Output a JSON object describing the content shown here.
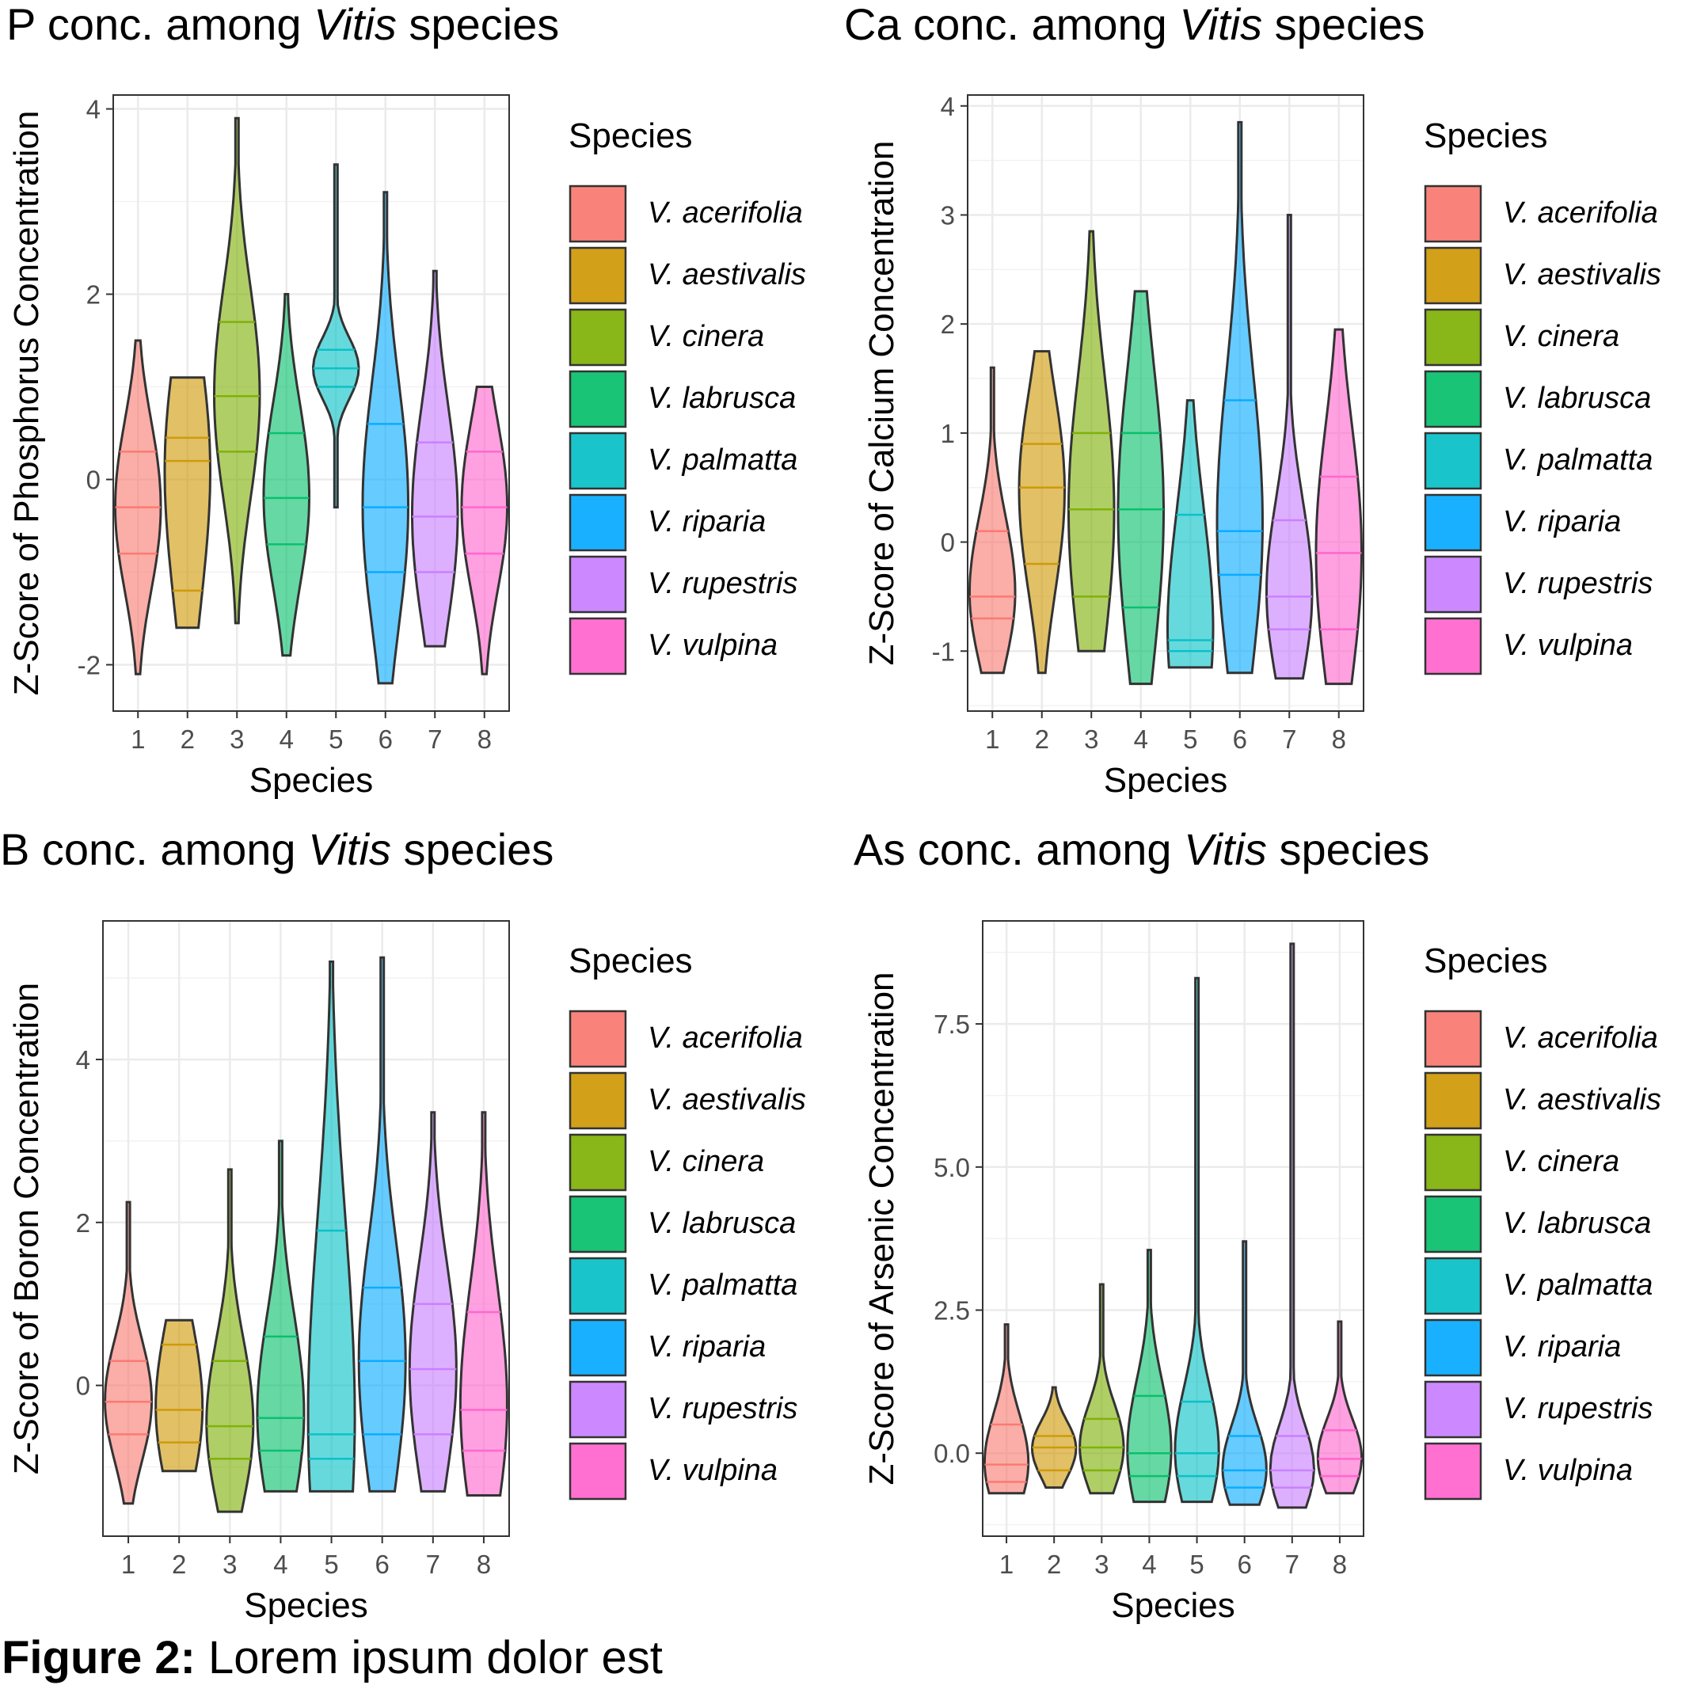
{
  "caption": {
    "bold": "Figure 2:",
    "rest": " Lorem ipsum dolor est"
  },
  "legend": {
    "title": "Species",
    "entries": [
      "V. acerifolia",
      "V. aestivalis",
      "V. cinera",
      "V. labrusca",
      "V. palmatta",
      "V. riparia",
      "V. rupestris",
      "V. vulpina"
    ],
    "colors": [
      "#F8766D",
      "#CD9600",
      "#7CAE00",
      "#00BE67",
      "#00BFC4",
      "#00A9FF",
      "#C77CFF",
      "#FF61CC"
    ]
  },
  "chart_data": [
    {
      "type": "violin",
      "title_pre": "P conc. among ",
      "title_italic": "Vitis",
      "title_post": " species",
      "xlabel": "Species",
      "ylabel": "Z-Score of Phosphorus Concentration",
      "categories": [
        "1",
        "2",
        "3",
        "4",
        "5",
        "6",
        "7",
        "8"
      ],
      "ylim": [
        -2.5,
        4.15
      ],
      "ytick_labels": [
        "-2",
        "0",
        "2",
        "4"
      ],
      "ytick_values": [
        -2,
        0,
        2,
        4
      ],
      "grid": true,
      "legend_position": "right",
      "series": [
        {
          "min": -2.1,
          "max": 1.5,
          "q1": -0.8,
          "median": -0.3,
          "q3": 0.3
        },
        {
          "min": -1.6,
          "max": 1.1,
          "q1": -1.2,
          "median": 0.2,
          "q3": 0.45
        },
        {
          "min": -1.55,
          "max": 3.9,
          "q1": 0.3,
          "median": 0.9,
          "q3": 1.7
        },
        {
          "min": -1.9,
          "max": 2.0,
          "q1": -0.7,
          "median": -0.2,
          "q3": 0.5
        },
        {
          "min": -0.3,
          "max": 3.4,
          "q1": 1.0,
          "median": 1.2,
          "q3": 1.4
        },
        {
          "min": -2.2,
          "max": 3.1,
          "q1": -1.0,
          "median": -0.3,
          "q3": 0.6
        },
        {
          "min": -1.8,
          "max": 2.25,
          "q1": -1.0,
          "median": -0.4,
          "q3": 0.4
        },
        {
          "min": -2.1,
          "max": 1.0,
          "q1": -0.8,
          "median": -0.3,
          "q3": 0.3
        }
      ]
    },
    {
      "type": "violin",
      "title_pre": "Ca conc. among ",
      "title_italic": "Vitis",
      "title_post": " species",
      "xlabel": "Species",
      "ylabel": "Z-Score of Calcium Concentration",
      "categories": [
        "1",
        "2",
        "3",
        "4",
        "5",
        "6",
        "7",
        "8"
      ],
      "ylim": [
        -1.55,
        4.1
      ],
      "ytick_labels": [
        "-1",
        "0",
        "1",
        "2",
        "3",
        "4"
      ],
      "ytick_values": [
        -1,
        0,
        1,
        2,
        3,
        4
      ],
      "grid": true,
      "legend_position": "right",
      "series": [
        {
          "min": -1.2,
          "max": 1.6,
          "q1": -0.7,
          "median": -0.5,
          "q3": 0.1
        },
        {
          "min": -1.2,
          "max": 1.75,
          "q1": -0.2,
          "median": 0.5,
          "q3": 0.9
        },
        {
          "min": -1.0,
          "max": 2.85,
          "q1": -0.5,
          "median": 0.3,
          "q3": 1.0
        },
        {
          "min": -1.3,
          "max": 2.3,
          "q1": -0.6,
          "median": 0.3,
          "q3": 1.0
        },
        {
          "min": -1.15,
          "max": 1.3,
          "q1": -1.0,
          "median": -0.9,
          "q3": 0.25
        },
        {
          "min": -1.2,
          "max": 3.85,
          "q1": -0.3,
          "median": 0.1,
          "q3": 1.3
        },
        {
          "min": -1.25,
          "max": 3.0,
          "q1": -0.8,
          "median": -0.5,
          "q3": 0.2
        },
        {
          "min": -1.3,
          "max": 1.95,
          "q1": -0.8,
          "median": -0.1,
          "q3": 0.6
        }
      ]
    },
    {
      "type": "violin",
      "title_pre": "B conc. among ",
      "title_italic": "Vitis",
      "title_post": " species",
      "xlabel": "Species",
      "ylabel": "Z-Score of Boron Concentration",
      "categories": [
        "1",
        "2",
        "3",
        "4",
        "5",
        "6",
        "7",
        "8"
      ],
      "ylim": [
        -1.85,
        5.7
      ],
      "ytick_labels": [
        "0",
        "2",
        "4"
      ],
      "ytick_values": [
        0,
        2,
        4
      ],
      "grid": true,
      "legend_position": "right",
      "series": [
        {
          "min": -1.45,
          "max": 2.25,
          "q1": -0.6,
          "median": -0.2,
          "q3": 0.3
        },
        {
          "min": -1.05,
          "max": 0.8,
          "q1": -0.7,
          "median": -0.3,
          "q3": 0.5
        },
        {
          "min": -1.55,
          "max": 2.65,
          "q1": -0.9,
          "median": -0.5,
          "q3": 0.3
        },
        {
          "min": -1.3,
          "max": 3.0,
          "q1": -0.8,
          "median": -0.4,
          "q3": 0.6
        },
        {
          "min": -1.3,
          "max": 5.2,
          "q1": -0.9,
          "median": -0.6,
          "q3": 1.9
        },
        {
          "min": -1.3,
          "max": 5.25,
          "q1": -0.6,
          "median": 0.3,
          "q3": 1.2
        },
        {
          "min": -1.3,
          "max": 3.35,
          "q1": -0.6,
          "median": 0.2,
          "q3": 1.0
        },
        {
          "min": -1.35,
          "max": 3.35,
          "q1": -0.8,
          "median": -0.3,
          "q3": 0.9
        }
      ]
    },
    {
      "type": "violin",
      "title_pre": "As conc. among ",
      "title_italic": "Vitis",
      "title_post": " species",
      "xlabel": "Species",
      "ylabel": "Z-Score of Arsenic Concentration",
      "categories": [
        "1",
        "2",
        "3",
        "4",
        "5",
        "6",
        "7",
        "8"
      ],
      "ylim": [
        -1.45,
        9.3
      ],
      "ytick_labels": [
        "0.0",
        "2.5",
        "5.0",
        "7.5"
      ],
      "ytick_values": [
        0,
        2.5,
        5,
        7.5
      ],
      "grid": true,
      "legend_position": "right",
      "series": [
        {
          "min": -0.7,
          "max": 2.25,
          "q1": -0.5,
          "median": -0.2,
          "q3": 0.5
        },
        {
          "min": -0.6,
          "max": 1.15,
          "q1": -0.3,
          "median": 0.1,
          "q3": 0.3
        },
        {
          "min": -0.7,
          "max": 2.95,
          "q1": -0.3,
          "median": 0.1,
          "q3": 0.6
        },
        {
          "min": -0.85,
          "max": 3.55,
          "q1": -0.4,
          "median": 0.0,
          "q3": 1.0
        },
        {
          "min": -0.85,
          "max": 8.3,
          "q1": -0.4,
          "median": 0.0,
          "q3": 0.9
        },
        {
          "min": -0.9,
          "max": 3.7,
          "q1": -0.6,
          "median": -0.3,
          "q3": 0.3
        },
        {
          "min": -0.95,
          "max": 8.9,
          "q1": -0.6,
          "median": -0.3,
          "q3": 0.3
        },
        {
          "min": -0.7,
          "max": 2.3,
          "q1": -0.4,
          "median": -0.1,
          "q3": 0.4
        }
      ]
    }
  ]
}
